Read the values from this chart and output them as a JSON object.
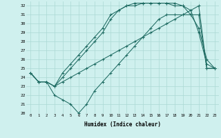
{
  "title": "",
  "xlabel": "Humidex (Indice chaleur)",
  "xlim": [
    -0.5,
    23.5
  ],
  "ylim": [
    20,
    32.5
  ],
  "xticks": [
    0,
    1,
    2,
    3,
    4,
    5,
    6,
    7,
    8,
    9,
    10,
    11,
    12,
    13,
    14,
    15,
    16,
    17,
    18,
    19,
    20,
    21,
    22,
    23
  ],
  "yticks": [
    20,
    21,
    22,
    23,
    24,
    25,
    26,
    27,
    28,
    29,
    30,
    31,
    32
  ],
  "background_color": "#cff0ee",
  "grid_color": "#aad8d4",
  "line_color": "#1e6b62",
  "lines": [
    {
      "x": [
        0,
        1,
        2,
        3,
        4,
        5,
        6,
        7,
        8,
        9,
        10,
        11,
        12,
        13,
        14,
        15,
        16,
        17,
        18,
        19,
        20,
        21,
        22,
        23
      ],
      "y": [
        24.5,
        23.5,
        23.5,
        23.0,
        23.5,
        24.0,
        24.5,
        25.0,
        25.5,
        26.0,
        26.5,
        27.0,
        27.5,
        28.0,
        28.5,
        29.0,
        29.5,
        30.0,
        30.5,
        31.0,
        31.5,
        32.0,
        25.0,
        25.0
      ]
    },
    {
      "x": [
        0,
        1,
        2,
        3,
        4,
        5,
        6,
        7,
        8,
        9,
        10,
        11,
        12,
        13,
        14,
        15,
        16,
        17,
        18,
        19,
        20,
        21,
        22,
        23
      ],
      "y": [
        24.5,
        23.5,
        23.5,
        23.0,
        24.0,
        25.0,
        26.0,
        27.0,
        28.0,
        29.0,
        30.5,
        31.5,
        32.0,
        32.0,
        32.3,
        32.3,
        32.3,
        32.3,
        32.3,
        32.0,
        31.5,
        29.0,
        25.5,
        25.0
      ]
    },
    {
      "x": [
        0,
        1,
        2,
        3,
        4,
        5,
        6,
        7,
        8,
        9,
        10,
        11,
        12,
        13,
        14,
        15,
        16,
        17,
        18,
        19,
        20,
        21,
        22,
        23
      ],
      "y": [
        24.5,
        23.5,
        23.5,
        23.0,
        24.5,
        25.5,
        26.5,
        27.5,
        28.5,
        29.5,
        31.0,
        31.5,
        32.0,
        32.3,
        32.3,
        32.3,
        32.3,
        32.3,
        32.0,
        32.0,
        31.0,
        29.5,
        26.0,
        25.0
      ]
    },
    {
      "x": [
        0,
        1,
        2,
        3,
        4,
        5,
        6,
        7,
        8,
        9,
        10,
        11,
        12,
        13,
        14,
        15,
        16,
        17,
        18,
        19,
        20,
        21,
        22,
        23
      ],
      "y": [
        24.5,
        23.5,
        23.5,
        22.0,
        21.5,
        21.0,
        20.0,
        21.0,
        22.5,
        23.5,
        24.5,
        25.5,
        26.5,
        27.5,
        28.5,
        29.5,
        30.5,
        31.0,
        31.0,
        31.0,
        31.0,
        31.0,
        25.0,
        25.0
      ]
    }
  ]
}
